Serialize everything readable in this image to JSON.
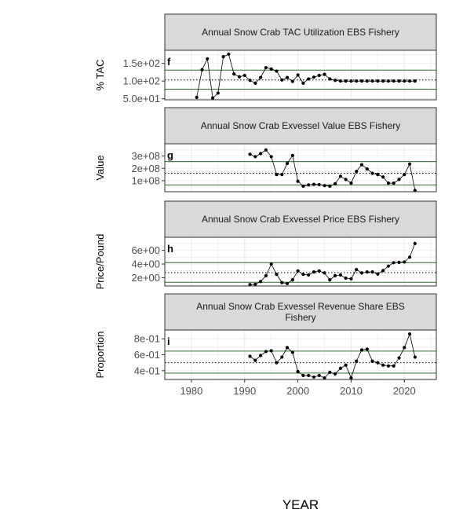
{
  "chart_data": {
    "type": "line",
    "xlabel": "YEAR",
    "x_ticks": [
      "1980",
      "1990",
      "2000",
      "2010",
      "2020"
    ],
    "xlim": [
      1975,
      2026
    ],
    "panels": [
      {
        "title": "Annual Snow Crab TAC Utilization EBS Fishery",
        "title_lines": [
          "Annual Snow Crab TAC Utilization EBS Fishery"
        ],
        "tag": "f",
        "ylabel": "% TAC",
        "ylim": [
          47,
          187
        ],
        "y_ticks": [
          50,
          100,
          150
        ],
        "y_tick_labels": [
          "5.0e+01",
          "1.0e+02",
          "1.5e+02"
        ],
        "mean": 103,
        "upper": 131,
        "lower": 77,
        "x": [
          1981,
          1982,
          1983,
          1984,
          1985,
          1986,
          1987,
          1988,
          1989,
          1990,
          1991,
          1992,
          1993,
          1994,
          1995,
          1996,
          1997,
          1998,
          1999,
          2000,
          2001,
          2002,
          2003,
          2004,
          2005,
          2006,
          2007,
          2008,
          2009,
          2010,
          2011,
          2012,
          2013,
          2014,
          2015,
          2016,
          2017,
          2018,
          2019,
          2020,
          2021,
          2022
        ],
        "values": [
          54,
          132,
          163,
          52,
          66,
          169,
          176,
          120,
          112,
          116,
          102,
          94,
          110,
          138,
          134,
          128,
          103,
          110,
          99,
          117,
          94,
          106,
          111,
          116,
          119,
          106,
          102,
          100,
          100,
          100,
          100,
          100,
          100,
          100,
          100,
          100,
          100,
          100,
          100,
          100,
          100,
          100
        ]
      },
      {
        "title": "Annual Snow Crab Exvessel Value EBS Fishery",
        "title_lines": [
          "Annual Snow Crab Exvessel Value EBS Fishery"
        ],
        "tag": "g",
        "ylabel": "Value",
        "ylim": [
          10000000,
          400000000
        ],
        "y_ticks": [
          100000000,
          200000000,
          300000000
        ],
        "y_tick_labels": [
          "1e+08",
          "2e+08",
          "3e+08"
        ],
        "mean": 160000000,
        "upper": 255000000,
        "lower": 65000000,
        "x": [
          1991,
          1992,
          1993,
          1994,
          1995,
          1996,
          1997,
          1998,
          1999,
          2000,
          2001,
          2002,
          2003,
          2004,
          2005,
          2006,
          2007,
          2008,
          2009,
          2010,
          2011,
          2012,
          2013,
          2014,
          2015,
          2016,
          2017,
          2018,
          2019,
          2020,
          2021,
          2022
        ],
        "values": [
          315000000,
          295000000,
          320000000,
          350000000,
          295000000,
          150000000,
          150000000,
          240000000,
          305000000,
          95000000,
          55000000,
          65000000,
          70000000,
          68000000,
          60000000,
          55000000,
          75000000,
          135000000,
          110000000,
          80000000,
          175000000,
          230000000,
          195000000,
          160000000,
          150000000,
          130000000,
          80000000,
          80000000,
          110000000,
          150000000,
          235000000,
          20000000
        ]
      },
      {
        "title": "Annual Snow Crab Exvessel Price EBS Fishery",
        "title_lines": [
          "Annual Snow Crab Exvessel Price EBS Fishery"
        ],
        "tag": "h",
        "ylabel": "Price/Pound",
        "ylim": [
          0.8,
          7.9
        ],
        "y_ticks": [
          2,
          4,
          6
        ],
        "y_tick_labels": [
          "2e+00",
          "4e+00",
          "6e+00"
        ],
        "mean": 2.75,
        "upper": 4.2,
        "lower": 1.35,
        "x": [
          1991,
          1992,
          1993,
          1994,
          1995,
          1996,
          1997,
          1998,
          1999,
          2000,
          2001,
          2002,
          2003,
          2004,
          2005,
          2006,
          2007,
          2008,
          2009,
          2010,
          2011,
          2012,
          2013,
          2014,
          2015,
          2016,
          2017,
          2018,
          2019,
          2020,
          2021,
          2022
        ],
        "values": [
          1.0,
          1.05,
          1.45,
          2.3,
          4.0,
          2.5,
          1.3,
          1.15,
          1.7,
          3.0,
          2.5,
          2.4,
          2.85,
          3.0,
          2.7,
          1.7,
          2.3,
          2.4,
          1.95,
          1.85,
          3.2,
          2.7,
          2.85,
          2.85,
          2.55,
          3.05,
          3.7,
          4.2,
          4.25,
          4.3,
          5.0,
          7.0
        ]
      },
      {
        "title": "Annual Snow Crab Exvessel Revenue Share EBS Fishery",
        "title_lines": [
          "Annual Snow Crab Exvessel Revenue Share EBS",
          "Fishery"
        ],
        "tag": "i",
        "ylabel": "Proportion",
        "ylim": [
          0.29,
          0.91
        ],
        "y_ticks": [
          0.4,
          0.6,
          0.8
        ],
        "y_tick_labels": [
          "4e-01",
          "6e-01",
          "8e-01"
        ],
        "mean": 0.5,
        "upper": 0.645,
        "lower": 0.37,
        "x": [
          1991,
          1992,
          1993,
          1994,
          1995,
          1996,
          1997,
          1998,
          1999,
          2000,
          2001,
          2002,
          2003,
          2004,
          2005,
          2006,
          2007,
          2008,
          2009,
          2010,
          2011,
          2012,
          2013,
          2014,
          2015,
          2016,
          2017,
          2018,
          2019,
          2020,
          2021,
          2022
        ],
        "values": [
          0.58,
          0.53,
          0.59,
          0.64,
          0.65,
          0.5,
          0.57,
          0.69,
          0.63,
          0.39,
          0.34,
          0.34,
          0.32,
          0.34,
          0.31,
          0.38,
          0.36,
          0.43,
          0.47,
          0.31,
          0.52,
          0.66,
          0.67,
          0.52,
          0.5,
          0.47,
          0.46,
          0.46,
          0.56,
          0.69,
          0.86,
          0.57
        ]
      }
    ],
    "grid": true,
    "colors": {
      "line": "#000000",
      "mean_line": "#000000",
      "band_line": "#2e6b2e",
      "strip_bg": "#d9d9d9",
      "grid": "#ebebeb"
    }
  }
}
